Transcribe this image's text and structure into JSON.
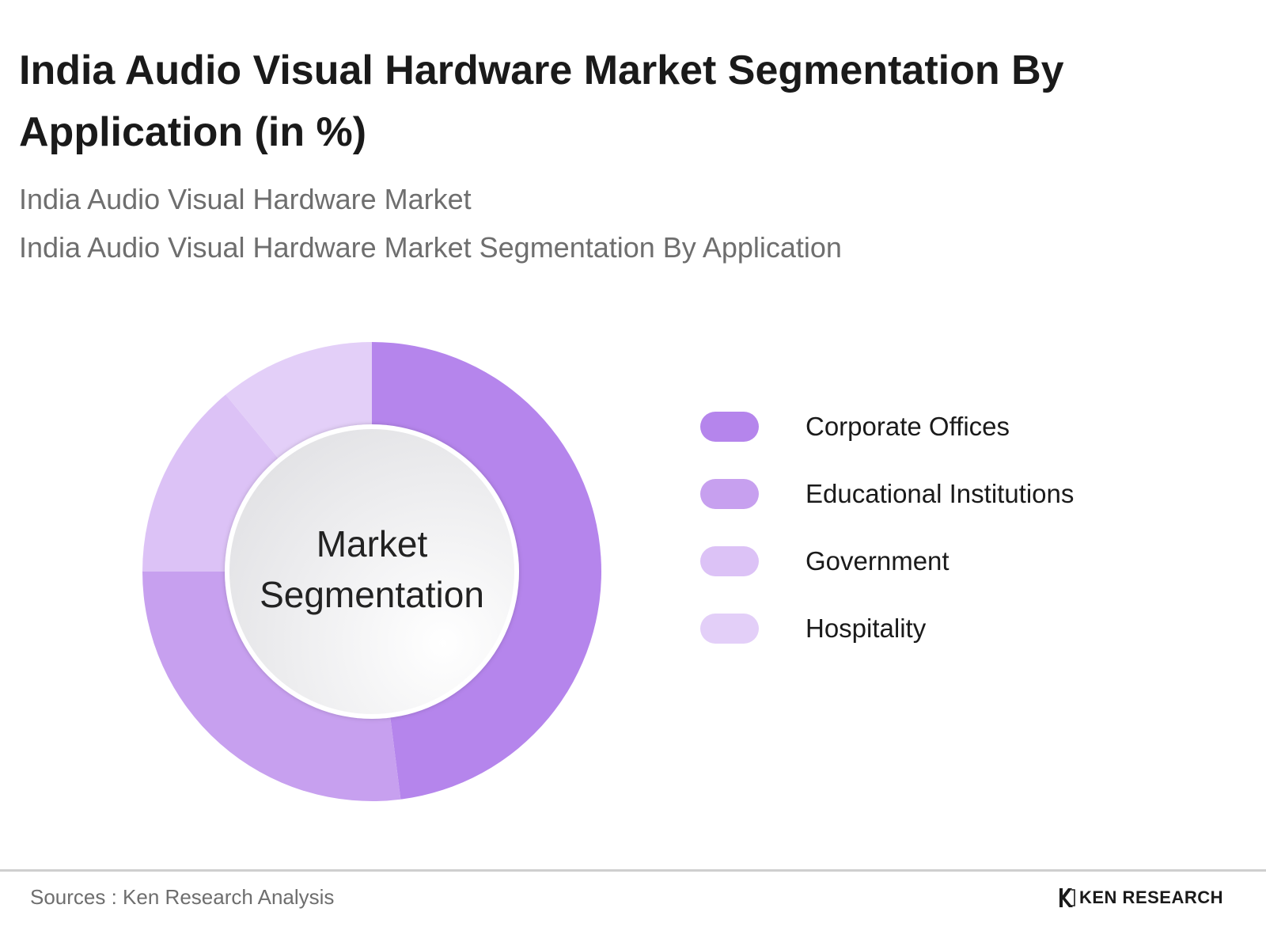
{
  "header": {
    "title": "India Audio Visual Hardware Market Segmentation By Application (in %)",
    "subtitle_1": "India Audio Visual Hardware Market",
    "subtitle_2": "India Audio Visual Hardware Market Segmentation By Application"
  },
  "chart_data": {
    "type": "pie",
    "title": "India Audio Visual Hardware Market Segmentation By Application (in %)",
    "center_label": "Market Segmentation",
    "categories": [
      "Corporate Offices",
      "Educational Institutions",
      "Government",
      "Hospitality"
    ],
    "values": [
      48,
      27,
      14,
      11
    ],
    "colors": [
      "#b585ec",
      "#c7a0ef",
      "#dcc2f6",
      "#e3cff8"
    ],
    "legend_placement": "right",
    "unit": "%"
  },
  "footer": {
    "source": "Sources : Ken Research Analysis",
    "logo_text": "KEN RESEARCH",
    "logo_icon": "ken-research-logo-icon"
  }
}
